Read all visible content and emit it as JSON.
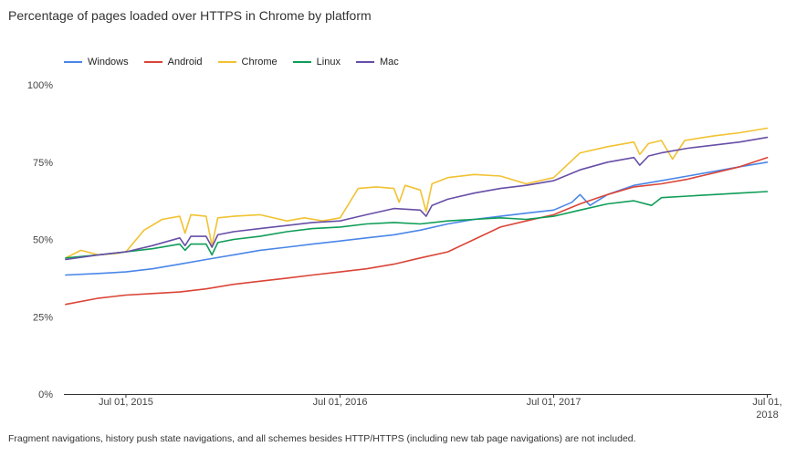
{
  "header": {
    "title": "Percentage of pages loaded over HTTPS in Chrome by platform"
  },
  "footnote": "Fragment navigations, history push state navigations, and all schemes besides HTTP/HTTPS (including new tab page navigations) are not included.",
  "chart_data": {
    "type": "line",
    "title": "Percentage of pages loaded over HTTPS in Chrome by platform",
    "xlabel": "",
    "ylabel": "",
    "x_range": [
      "2015-03-17",
      "2018-07-08"
    ],
    "ylim": [
      0,
      100
    ],
    "y_ticks": [
      0,
      25,
      50,
      75,
      100
    ],
    "y_tick_labels": [
      "0%",
      "25%",
      "50%",
      "75%",
      "100%"
    ],
    "x_ticks": [
      "2015-07-01",
      "2016-07-01",
      "2017-07-01",
      "2018-07-01"
    ],
    "x_tick_labels": [
      [
        "Jul 01, 2015"
      ],
      [
        "Jul 01, 2016"
      ],
      [
        "Jul 01, 2017"
      ],
      [
        "Jul 01,",
        "2018"
      ]
    ],
    "grid": false,
    "legend": "top-left",
    "series": [
      {
        "name": "Windows",
        "color": "#4a86e8",
        "points": [
          [
            "2015-03-20",
            38.5
          ],
          [
            "2015-05-15",
            39.0
          ],
          [
            "2015-07-01",
            39.5
          ],
          [
            "2015-08-15",
            40.5
          ],
          [
            "2015-10-01",
            42.0
          ],
          [
            "2015-11-15",
            43.5
          ],
          [
            "2016-01-01",
            45.0
          ],
          [
            "2016-02-15",
            46.5
          ],
          [
            "2016-04-01",
            47.5
          ],
          [
            "2016-05-15",
            48.5
          ],
          [
            "2016-07-01",
            49.5
          ],
          [
            "2016-08-15",
            50.5
          ],
          [
            "2016-10-01",
            51.5
          ],
          [
            "2016-11-15",
            53.0
          ],
          [
            "2017-01-01",
            55.0
          ],
          [
            "2017-02-15",
            56.5
          ],
          [
            "2017-04-01",
            57.5
          ],
          [
            "2017-05-15",
            58.5
          ],
          [
            "2017-07-01",
            59.5
          ],
          [
            "2017-08-01",
            62.0
          ],
          [
            "2017-08-15",
            64.5
          ],
          [
            "2017-09-01",
            61.0
          ],
          [
            "2017-10-01",
            64.5
          ],
          [
            "2017-11-15",
            67.5
          ],
          [
            "2018-01-01",
            69.0
          ],
          [
            "2018-02-15",
            70.5
          ],
          [
            "2018-04-01",
            72.0
          ],
          [
            "2018-05-15",
            73.5
          ],
          [
            "2018-07-01",
            75.0
          ]
        ]
      },
      {
        "name": "Android",
        "color": "#db4437",
        "points": [
          [
            "2015-03-20",
            29.0
          ],
          [
            "2015-05-15",
            31.0
          ],
          [
            "2015-07-01",
            32.0
          ],
          [
            "2015-08-15",
            32.5
          ],
          [
            "2015-10-01",
            33.0
          ],
          [
            "2015-11-15",
            34.0
          ],
          [
            "2016-01-01",
            35.5
          ],
          [
            "2016-02-15",
            36.5
          ],
          [
            "2016-04-01",
            37.5
          ],
          [
            "2016-05-15",
            38.5
          ],
          [
            "2016-07-01",
            39.5
          ],
          [
            "2016-08-15",
            40.5
          ],
          [
            "2016-10-01",
            42.0
          ],
          [
            "2016-11-15",
            44.0
          ],
          [
            "2017-01-01",
            46.0
          ],
          [
            "2017-02-15",
            50.0
          ],
          [
            "2017-04-01",
            54.0
          ],
          [
            "2017-05-15",
            56.0
          ],
          [
            "2017-07-01",
            58.0
          ],
          [
            "2017-08-15",
            61.5
          ],
          [
            "2017-10-01",
            64.5
          ],
          [
            "2017-11-15",
            67.0
          ],
          [
            "2018-01-01",
            68.0
          ],
          [
            "2018-02-15",
            69.5
          ],
          [
            "2018-04-01",
            71.5
          ],
          [
            "2018-05-15",
            73.5
          ],
          [
            "2018-07-01",
            76.5
          ]
        ]
      },
      {
        "name": "Chrome",
        "color": "#f1c232",
        "points": [
          [
            "2015-03-20",
            44.0
          ],
          [
            "2015-04-15",
            46.5
          ],
          [
            "2015-05-15",
            45.0
          ],
          [
            "2015-06-15",
            45.5
          ],
          [
            "2015-07-01",
            46.0
          ],
          [
            "2015-08-01",
            53.0
          ],
          [
            "2015-09-01",
            56.5
          ],
          [
            "2015-10-01",
            57.5
          ],
          [
            "2015-10-10",
            52.0
          ],
          [
            "2015-10-20",
            58.0
          ],
          [
            "2015-11-15",
            57.5
          ],
          [
            "2015-11-25",
            48.0
          ],
          [
            "2015-12-05",
            57.0
          ],
          [
            "2016-01-01",
            57.5
          ],
          [
            "2016-02-15",
            58.0
          ],
          [
            "2016-04-01",
            56.0
          ],
          [
            "2016-05-01",
            57.0
          ],
          [
            "2016-06-01",
            56.0
          ],
          [
            "2016-07-01",
            57.0
          ],
          [
            "2016-08-01",
            66.5
          ],
          [
            "2016-09-01",
            67.0
          ],
          [
            "2016-10-01",
            66.5
          ],
          [
            "2016-10-10",
            62.0
          ],
          [
            "2016-10-20",
            67.5
          ],
          [
            "2016-11-15",
            66.0
          ],
          [
            "2016-11-25",
            59.0
          ],
          [
            "2016-12-05",
            68.0
          ],
          [
            "2017-01-01",
            70.0
          ],
          [
            "2017-02-15",
            71.0
          ],
          [
            "2017-04-01",
            70.5
          ],
          [
            "2017-05-15",
            68.0
          ],
          [
            "2017-07-01",
            70.0
          ],
          [
            "2017-08-15",
            78.0
          ],
          [
            "2017-10-01",
            80.0
          ],
          [
            "2017-11-15",
            81.5
          ],
          [
            "2017-11-25",
            77.5
          ],
          [
            "2017-12-10",
            81.0
          ],
          [
            "2018-01-01",
            82.0
          ],
          [
            "2018-01-20",
            76.0
          ],
          [
            "2018-02-10",
            82.0
          ],
          [
            "2018-04-01",
            83.5
          ],
          [
            "2018-05-15",
            84.5
          ],
          [
            "2018-07-01",
            86.0
          ]
        ]
      },
      {
        "name": "Linux",
        "color": "#0f9d58",
        "points": [
          [
            "2015-03-20",
            44.0
          ],
          [
            "2015-05-15",
            45.0
          ],
          [
            "2015-07-01",
            46.0
          ],
          [
            "2015-08-15",
            47.0
          ],
          [
            "2015-10-01",
            48.5
          ],
          [
            "2015-10-10",
            46.5
          ],
          [
            "2015-10-20",
            48.5
          ],
          [
            "2015-11-15",
            48.5
          ],
          [
            "2015-11-25",
            45.0
          ],
          [
            "2015-12-05",
            49.0
          ],
          [
            "2016-01-01",
            50.0
          ],
          [
            "2016-02-15",
            51.0
          ],
          [
            "2016-04-01",
            52.5
          ],
          [
            "2016-05-15",
            53.5
          ],
          [
            "2016-07-01",
            54.0
          ],
          [
            "2016-08-15",
            55.0
          ],
          [
            "2016-10-01",
            55.5
          ],
          [
            "2016-11-15",
            55.0
          ],
          [
            "2017-01-01",
            56.0
          ],
          [
            "2017-02-15",
            56.5
          ],
          [
            "2017-04-01",
            57.0
          ],
          [
            "2017-05-15",
            56.5
          ],
          [
            "2017-07-01",
            57.5
          ],
          [
            "2017-08-15",
            59.5
          ],
          [
            "2017-10-01",
            61.5
          ],
          [
            "2017-11-15",
            62.5
          ],
          [
            "2017-12-15",
            61.0
          ],
          [
            "2018-01-01",
            63.5
          ],
          [
            "2018-02-15",
            64.0
          ],
          [
            "2018-04-01",
            64.5
          ],
          [
            "2018-05-15",
            65.0
          ],
          [
            "2018-07-01",
            65.5
          ]
        ]
      },
      {
        "name": "Mac",
        "color": "#674ea7",
        "points": [
          [
            "2015-03-20",
            43.5
          ],
          [
            "2015-05-15",
            45.0
          ],
          [
            "2015-07-01",
            46.0
          ],
          [
            "2015-08-15",
            48.0
          ],
          [
            "2015-10-01",
            50.5
          ],
          [
            "2015-10-10",
            48.0
          ],
          [
            "2015-10-20",
            51.0
          ],
          [
            "2015-11-15",
            51.0
          ],
          [
            "2015-11-25",
            47.5
          ],
          [
            "2015-12-05",
            51.5
          ],
          [
            "2016-01-01",
            52.5
          ],
          [
            "2016-02-15",
            53.5
          ],
          [
            "2016-04-01",
            54.5
          ],
          [
            "2016-05-15",
            55.5
          ],
          [
            "2016-07-01",
            56.0
          ],
          [
            "2016-08-15",
            58.0
          ],
          [
            "2016-10-01",
            60.0
          ],
          [
            "2016-11-15",
            59.5
          ],
          [
            "2016-11-25",
            57.5
          ],
          [
            "2016-12-05",
            61.0
          ],
          [
            "2017-01-01",
            63.0
          ],
          [
            "2017-02-15",
            65.0
          ],
          [
            "2017-04-01",
            66.5
          ],
          [
            "2017-05-15",
            67.5
          ],
          [
            "2017-07-01",
            69.0
          ],
          [
            "2017-08-15",
            72.5
          ],
          [
            "2017-10-01",
            75.0
          ],
          [
            "2017-11-15",
            76.5
          ],
          [
            "2017-11-25",
            74.0
          ],
          [
            "2017-12-10",
            77.0
          ],
          [
            "2018-01-01",
            78.0
          ],
          [
            "2018-02-15",
            79.5
          ],
          [
            "2018-04-01",
            80.5
          ],
          [
            "2018-05-15",
            81.5
          ],
          [
            "2018-07-01",
            83.0
          ]
        ]
      }
    ]
  }
}
